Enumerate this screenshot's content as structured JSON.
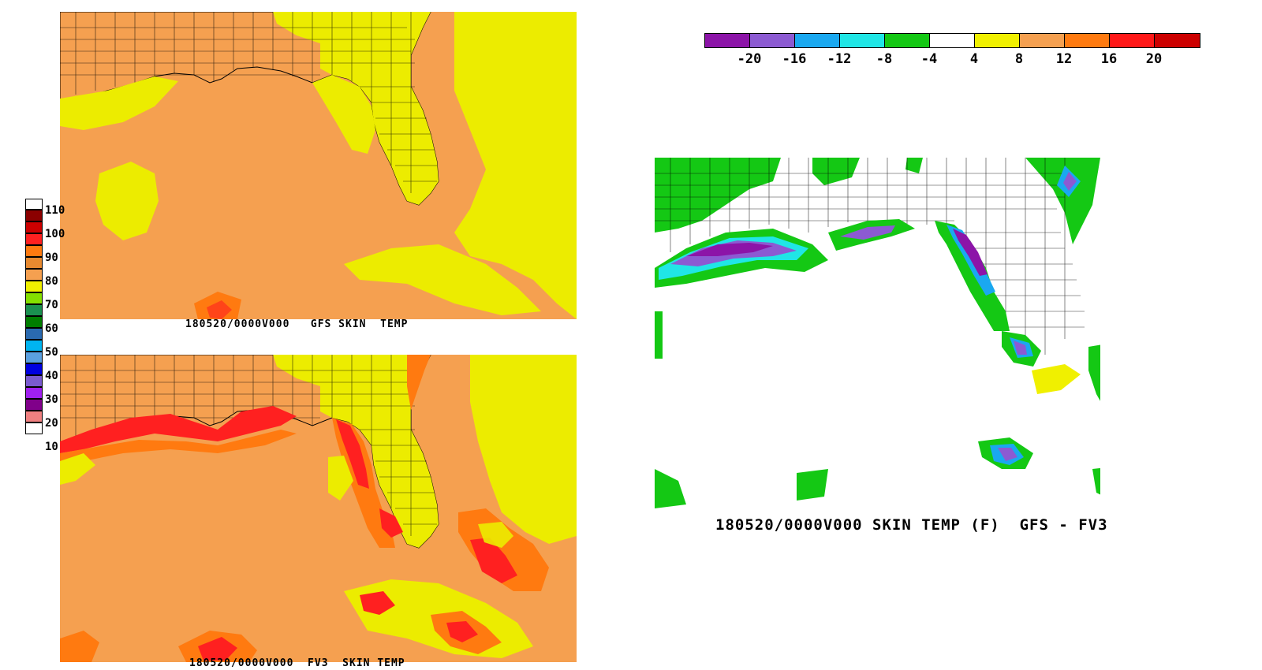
{
  "panels": {
    "top_left": {
      "caption": "180520/0000V000   GFS SKIN  TEMP"
    },
    "bottom_left": {
      "caption": "180520/0000V000  FV3  SKIN TEMP"
    },
    "right": {
      "caption": "180520/0000V000 SKIN TEMP (F)  GFS - FV3"
    }
  },
  "legend_left": {
    "labels": [
      "110",
      "100",
      "90",
      "80",
      "70",
      "60",
      "50",
      "40",
      "30",
      "20",
      "10"
    ],
    "colors": [
      "#ffffff",
      "#8b0000",
      "#cc0000",
      "#ff2020",
      "#ff7a10",
      "#f5a050",
      "#f0f000",
      "#84e000",
      "#007d00",
      "#1a9050",
      "#00b4f0",
      "#40d0e8",
      "#1a90ff",
      "#0000e0",
      "#7a5ad0",
      "#a020f0",
      "#80008a",
      "#f08080",
      "#ffffff"
    ]
  },
  "legend_top": {
    "labels": [
      "-20",
      "-16",
      "-12",
      "-8",
      "-4",
      "4",
      "8",
      "12",
      "16",
      "20"
    ],
    "colors": [
      "#8c14a8",
      "#8c5ad2",
      "#1aa8f0",
      "#20e6e6",
      "#14c814",
      "#ffffff",
      "#f0f000",
      "#f5a050",
      "#ff7a10",
      "#ff1818",
      "#cc0000"
    ]
  },
  "colors": {
    "warm_orange": "#f5a050",
    "yellow": "#ecec00",
    "red": "#ff2020",
    "dark_orange": "#ff7a10",
    "green": "#14c814",
    "purple": "#8c14a8",
    "blue": "#1aa8f0"
  }
}
